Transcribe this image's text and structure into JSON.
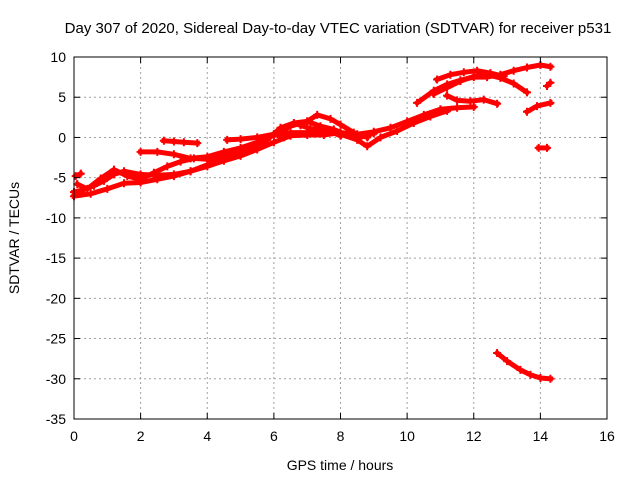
{
  "chart_data": {
    "type": "scatter",
    "title": "Day 307 of 2020, Sidereal Day-to-day VTEC variation (SDTVAR) for receiver p531",
    "xlabel": "GPS time / hours",
    "ylabel": "SDTVAR / TECUs",
    "xlim": [
      0,
      16
    ],
    "ylim": [
      -35,
      10
    ],
    "xticks": [
      "0",
      "2",
      "4",
      "6",
      "8",
      "10",
      "12",
      "14",
      "16"
    ],
    "yticks": [
      "10",
      "5",
      "0",
      "-5",
      "-10",
      "-15",
      "-20",
      "-25",
      "-30",
      "-35"
    ],
    "grid": true,
    "marker_color": "#ff0000",
    "series": [
      {
        "points": [
          [
            0,
            -6.8
          ],
          [
            0.3,
            -6.5
          ],
          [
            0.6,
            -6.0
          ],
          [
            0.9,
            -5.4
          ],
          [
            1.2,
            -4.6
          ],
          [
            1.5,
            -4.2
          ],
          [
            2.0,
            -4.6
          ],
          [
            2.5,
            -4.7
          ],
          [
            3.0,
            -4.6
          ],
          [
            3.5,
            -4.2
          ],
          [
            4.0,
            -3.6
          ],
          [
            4.5,
            -2.9
          ],
          [
            5.0,
            -2.3
          ],
          [
            5.5,
            -1.5
          ],
          [
            6.0,
            -0.6
          ],
          [
            6.5,
            0.2
          ],
          [
            7.0,
            0.3
          ],
          [
            7.5,
            0.3
          ],
          [
            8.0,
            0.6
          ],
          [
            8.5,
            0.4
          ],
          [
            9.0,
            0.7
          ],
          [
            9.5,
            1.2
          ],
          [
            10.0,
            2.0
          ],
          [
            10.5,
            2.8
          ],
          [
            11.0,
            3.5
          ],
          [
            11.5,
            3.7
          ],
          [
            12.0,
            3.8
          ]
        ]
      },
      {
        "points": [
          [
            0,
            -7.3
          ],
          [
            0.5,
            -7.0
          ],
          [
            1.0,
            -6.4
          ],
          [
            1.5,
            -5.7
          ],
          [
            2.0,
            -5.6
          ],
          [
            2.5,
            -5.2
          ],
          [
            3.0,
            -4.8
          ],
          [
            3.5,
            -4.2
          ],
          [
            4.0,
            -3.4
          ],
          [
            4.5,
            -2.5
          ],
          [
            5.0,
            -1.6
          ],
          [
            5.5,
            -0.8
          ],
          [
            6.0,
            0.4
          ],
          [
            6.5,
            0.6
          ],
          [
            7.0,
            0.6
          ],
          [
            7.5,
            0.8
          ],
          [
            8.0,
            0.4
          ],
          [
            8.5,
            -0.3
          ],
          [
            8.8,
            -1.1
          ],
          [
            9.2,
            0.0
          ],
          [
            9.7,
            0.8
          ],
          [
            10.2,
            1.8
          ],
          [
            10.7,
            2.6
          ],
          [
            11.2,
            3.3
          ]
        ]
      },
      {
        "points": [
          [
            0.1,
            -5.8
          ],
          [
            0.4,
            -6.4
          ],
          [
            0.8,
            -5.1
          ],
          [
            1.2,
            -4.0
          ],
          [
            1.6,
            -4.8
          ],
          [
            2.0,
            -5.2
          ],
          [
            2.4,
            -4.4
          ],
          [
            2.8,
            -3.6
          ],
          [
            3.2,
            -3.0
          ],
          [
            3.6,
            -2.6
          ],
          [
            4.0,
            -2.7
          ],
          [
            4.5,
            -2.4
          ],
          [
            5.0,
            -1.8
          ],
          [
            5.5,
            -1.1
          ],
          [
            5.8,
            -0.3
          ],
          [
            6.2,
            1.2
          ],
          [
            6.6,
            1.8
          ],
          [
            7.0,
            2.0
          ],
          [
            7.4,
            1.4
          ],
          [
            7.8,
            1.0
          ],
          [
            8.2,
            0.3
          ],
          [
            8.6,
            0.0
          ],
          [
            9.0,
            0.5
          ]
        ]
      },
      {
        "points": [
          [
            2.0,
            -1.8
          ],
          [
            2.5,
            -1.8
          ],
          [
            3.0,
            -2.1
          ],
          [
            3.5,
            -2.6
          ],
          [
            4.0,
            -2.4
          ],
          [
            4.5,
            -1.8
          ],
          [
            5.0,
            -1.3
          ],
          [
            5.5,
            -0.6
          ],
          [
            6.0,
            0.3
          ],
          [
            6.5,
            1.4
          ],
          [
            7.0,
            2.0
          ],
          [
            7.3,
            2.8
          ],
          [
            7.7,
            2.3
          ],
          [
            8.0,
            1.6
          ],
          [
            8.4,
            0.6
          ],
          [
            8.8,
            0.0
          ]
        ]
      },
      {
        "points": [
          [
            2.7,
            -0.4
          ],
          [
            3.0,
            -0.5
          ],
          [
            3.3,
            -0.6
          ],
          [
            3.7,
            -0.7
          ]
        ]
      },
      {
        "points": [
          [
            4.6,
            -0.3
          ],
          [
            5.0,
            -0.2
          ],
          [
            5.5,
            0.0
          ],
          [
            6.0,
            0.4
          ],
          [
            6.3,
            0.0
          ]
        ]
      },
      {
        "points": [
          [
            6.8,
            1.5
          ],
          [
            7.1,
            1.1
          ],
          [
            7.6,
            0.9
          ],
          [
            8.0,
            0.2
          ]
        ]
      },
      {
        "points": [
          [
            0.05,
            -4.8
          ],
          [
            0.2,
            -4.5
          ]
        ]
      },
      {
        "points": [
          [
            10.3,
            4.3
          ],
          [
            10.8,
            5.8
          ],
          [
            11.2,
            6.6
          ],
          [
            11.6,
            7.1
          ],
          [
            12.0,
            7.5
          ],
          [
            12.4,
            7.5
          ],
          [
            12.8,
            7.8
          ],
          [
            13.2,
            8.3
          ],
          [
            13.6,
            8.7
          ],
          [
            14.0,
            9.0
          ],
          [
            14.3,
            8.8
          ]
        ]
      },
      {
        "points": [
          [
            10.8,
            5.4
          ],
          [
            11.2,
            6.2
          ],
          [
            11.6,
            7.0
          ],
          [
            12.0,
            7.6
          ],
          [
            12.4,
            7.8
          ],
          [
            12.8,
            7.4
          ],
          [
            13.2,
            6.7
          ],
          [
            13.6,
            5.6
          ]
        ]
      },
      {
        "points": [
          [
            10.9,
            7.2
          ],
          [
            11.3,
            7.8
          ],
          [
            11.7,
            8.1
          ],
          [
            12.1,
            8.3
          ],
          [
            12.5,
            8.0
          ],
          [
            12.9,
            7.6
          ]
        ]
      },
      {
        "points": [
          [
            11.2,
            5.2
          ],
          [
            11.5,
            4.6
          ],
          [
            11.9,
            4.5
          ],
          [
            12.3,
            4.7
          ],
          [
            12.7,
            4.2
          ]
        ]
      },
      {
        "points": [
          [
            13.6,
            3.2
          ],
          [
            13.9,
            3.9
          ],
          [
            14.3,
            4.3
          ]
        ]
      },
      {
        "points": [
          [
            14.2,
            6.4
          ],
          [
            14.3,
            6.8
          ]
        ]
      },
      {
        "points": [
          [
            13.95,
            -1.3
          ],
          [
            14.2,
            -1.3
          ]
        ]
      },
      {
        "points": [
          [
            12.7,
            -26.8
          ],
          [
            13.0,
            -27.8
          ],
          [
            13.4,
            -28.9
          ],
          [
            13.7,
            -29.5
          ],
          [
            14.0,
            -29.9
          ],
          [
            14.3,
            -30.0
          ]
        ]
      }
    ]
  }
}
